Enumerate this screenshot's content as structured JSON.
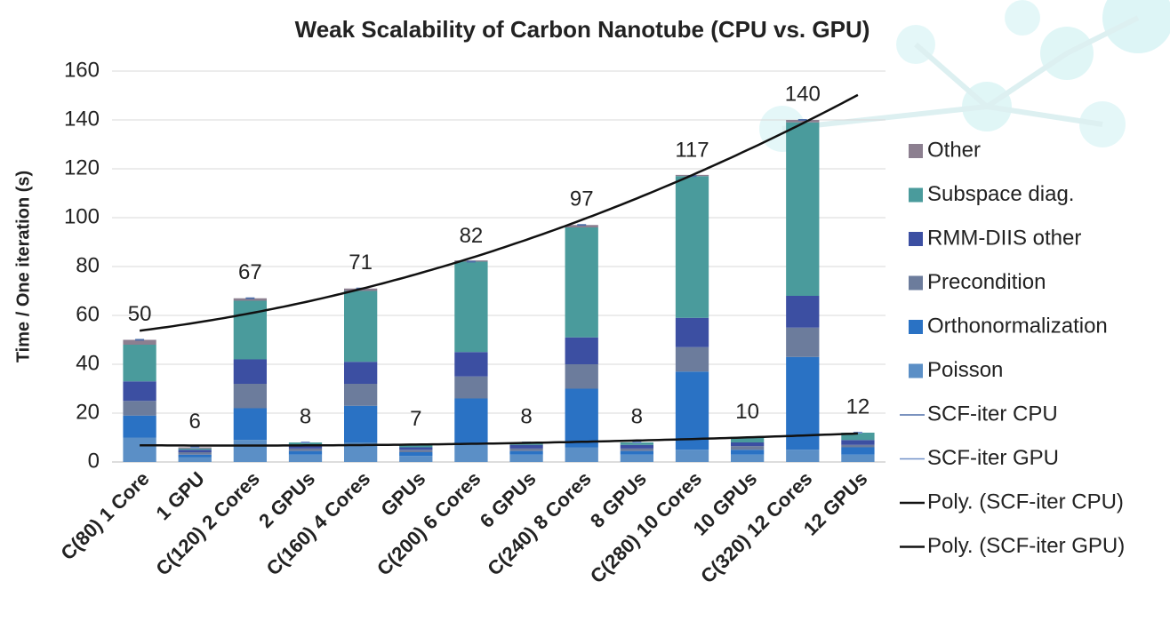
{
  "chart_data": {
    "type": "bar",
    "stacked": true,
    "title": "Weak Scalability of Carbon Nanotube (CPU vs. GPU)",
    "y_label": "Time / One iteration (s)",
    "categories": [
      "C(80) 1 Core",
      "1 GPU",
      "C(120) 2 Cores",
      "2 GPUs",
      "C(160) 4 Cores",
      "GPUs",
      "C(200) 6 Cores",
      "6 GPUs",
      "C(240) 8 Cores",
      "8 GPUs",
      "C(280) 10 Cores",
      "10 GPUs",
      "C(320) 12 Cores",
      "12 GPUs"
    ],
    "series": [
      {
        "name": "Poisson",
        "color": "#5b8fc6",
        "values": [
          10,
          2,
          9,
          3,
          8,
          2.5,
          7,
          3,
          6,
          3,
          5,
          3,
          5,
          3
        ]
      },
      {
        "name": "Orthonormalization",
        "color": "#2a72c4",
        "values": [
          9,
          1,
          13,
          1.5,
          15,
          1.5,
          19,
          1.5,
          24,
          1.5,
          32,
          2,
          38,
          3
        ]
      },
      {
        "name": "Precondition",
        "color": "#6c7c9c",
        "values": [
          6,
          1,
          10,
          1,
          9,
          1,
          9,
          1,
          10,
          1,
          10,
          1.5,
          12,
          1
        ]
      },
      {
        "name": "RMM-DIIS other",
        "color": "#3c4fa2",
        "values": [
          8,
          1,
          10,
          1.5,
          9,
          1,
          10,
          1.5,
          11,
          1.5,
          12,
          1.5,
          13,
          2
        ]
      },
      {
        "name": "Subspace diag.",
        "color": "#4a9b9c",
        "values": [
          15,
          0.5,
          24,
          1,
          29,
          1,
          37,
          1,
          45,
          1,
          58,
          2,
          71,
          3
        ]
      },
      {
        "name": "Other",
        "color": "#8c7f90",
        "values": [
          2,
          0.5,
          1,
          0,
          1,
          0,
          0.5,
          0,
          1,
          0,
          0.5,
          0,
          1,
          0
        ]
      }
    ],
    "lines": [
      {
        "name": "SCF-iter CPU",
        "color": "#4f6fa8",
        "values": [
          50,
          null,
          67,
          null,
          71,
          null,
          82,
          null,
          97,
          null,
          117,
          null,
          140,
          null
        ],
        "trendline": {
          "name": "Poly. (SCF-iter CPU)",
          "kind": "polynomial",
          "order": 2,
          "color": "#111111"
        }
      },
      {
        "name": "SCF-iter GPU",
        "color": "#7090c8",
        "values": [
          null,
          6,
          null,
          8,
          null,
          7,
          null,
          8,
          null,
          8,
          null,
          10,
          null,
          12
        ],
        "trendline": {
          "name": "Poly. (SCF-iter GPU)",
          "kind": "polynomial",
          "order": 2,
          "color": "#111111"
        }
      }
    ],
    "ylim": [
      0,
      160
    ],
    "yticks": [
      0,
      20,
      40,
      60,
      80,
      100,
      120,
      140,
      160
    ],
    "grid": true,
    "legend": "right"
  }
}
